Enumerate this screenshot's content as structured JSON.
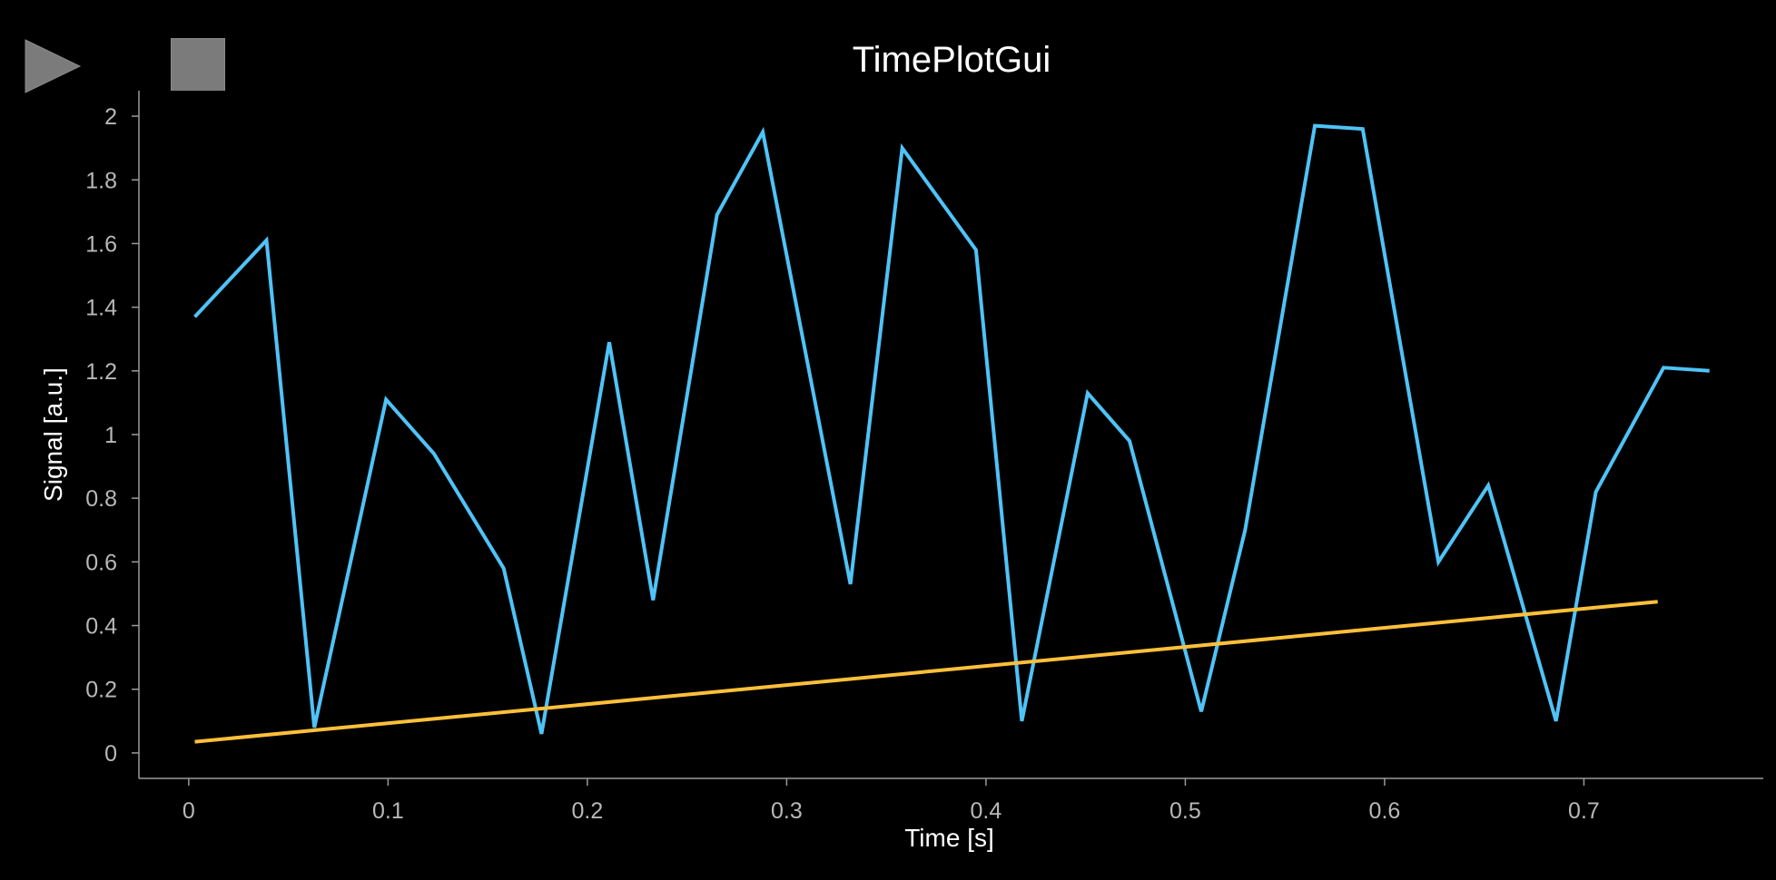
{
  "toolbar": {
    "play_icon": "play-triangle-icon",
    "stop_icon": "stop-square-icon"
  },
  "chart_data": {
    "type": "line",
    "title": "TimePlotGui",
    "xlabel": "Time [s]",
    "ylabel": "Signal [a.u.]",
    "xlim": [
      -0.025,
      0.79
    ],
    "ylim": [
      -0.08,
      2.08
    ],
    "xticks": [
      "0",
      "0.1",
      "0.2",
      "0.3",
      "0.4",
      "0.5",
      "0.6",
      "0.7"
    ],
    "yticks": [
      "0",
      "0.2",
      "0.4",
      "0.6",
      "0.8",
      "1",
      "1.2",
      "1.4",
      "1.6",
      "1.8",
      "2"
    ],
    "grid": true,
    "series": [
      {
        "color": "#4fc3f7",
        "x": [
          0.003,
          0.039,
          0.063,
          0.099,
          0.123,
          0.158,
          0.177,
          0.211,
          0.233,
          0.265,
          0.288,
          0.332,
          0.358,
          0.395,
          0.418,
          0.451,
          0.472,
          0.508,
          0.53,
          0.565,
          0.589,
          0.627,
          0.652,
          0.686,
          0.706,
          0.74,
          0.763
        ],
        "y": [
          1.37,
          1.61,
          0.08,
          1.11,
          0.94,
          0.58,
          0.06,
          1.29,
          0.48,
          1.69,
          1.95,
          0.53,
          1.9,
          1.58,
          0.1,
          1.13,
          0.98,
          0.13,
          0.7,
          1.97,
          1.96,
          0.6,
          0.84,
          0.1,
          0.82,
          1.21,
          1.2
        ]
      },
      {
        "color": "#ffc03a",
        "x": [
          0.003,
          0.737
        ],
        "y": [
          0.035,
          0.475
        ]
      }
    ]
  }
}
